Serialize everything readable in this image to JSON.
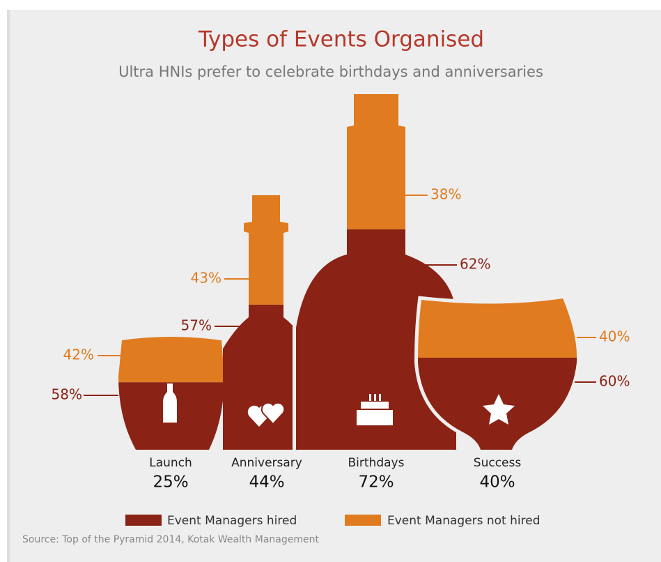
{
  "chart_data": {
    "type": "pictorial",
    "title": "Types of Events Organised",
    "subtitle": "Ultra HNIs prefer to celebrate birthdays and anniversaries",
    "categories": [
      "Launch",
      "Anniversary",
      "Birthdays",
      "Success"
    ],
    "values": [
      25,
      44,
      72,
      40
    ],
    "value_labels": [
      "25%",
      "44%",
      "72%",
      "40%"
    ],
    "series": [
      {
        "name": "Event Managers hired",
        "color": "#8a2315",
        "values": [
          58,
          57,
          62,
          60
        ],
        "value_labels": [
          "58%",
          "57%",
          "62%",
          "60%"
        ]
      },
      {
        "name": "Event Managers not hired",
        "color": "#e07b20",
        "values": [
          42,
          43,
          38,
          40
        ],
        "value_labels": [
          "42%",
          "43%",
          "38%",
          "40%"
        ]
      }
    ],
    "source": "Source: Top of the Pyramid 2014, Kotak Wealth Management"
  }
}
